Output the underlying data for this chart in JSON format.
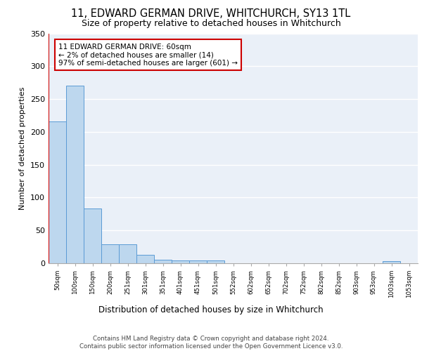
{
  "title": "11, EDWARD GERMAN DRIVE, WHITCHURCH, SY13 1TL",
  "subtitle": "Size of property relative to detached houses in Whitchurch",
  "xlabel": "Distribution of detached houses by size in Whitchurch",
  "ylabel": "Number of detached properties",
  "bar_values": [
    216,
    270,
    83,
    29,
    29,
    13,
    5,
    4,
    4,
    4,
    0,
    0,
    0,
    0,
    0,
    0,
    0,
    0,
    0,
    3,
    0
  ],
  "categories": [
    "50sqm",
    "100sqm",
    "150sqm",
    "200sqm",
    "251sqm",
    "301sqm",
    "351sqm",
    "401sqm",
    "451sqm",
    "501sqm",
    "552sqm",
    "602sqm",
    "652sqm",
    "702sqm",
    "752sqm",
    "802sqm",
    "852sqm",
    "903sqm",
    "953sqm",
    "1003sqm",
    "1053sqm"
  ],
  "bar_color": "#bdd7ee",
  "bar_edge_color": "#5b9bd5",
  "annotation_text": "11 EDWARD GERMAN DRIVE: 60sqm\n← 2% of detached houses are smaller (14)\n97% of semi-detached houses are larger (601) →",
  "ylim": [
    0,
    350
  ],
  "yticks": [
    0,
    50,
    100,
    150,
    200,
    250,
    300,
    350
  ],
  "footer": "Contains HM Land Registry data © Crown copyright and database right 2024.\nContains public sector information licensed under the Open Government Licence v3.0.",
  "background_color": "#eaf0f8",
  "grid_color": "#ffffff",
  "red_color": "#cc0000"
}
